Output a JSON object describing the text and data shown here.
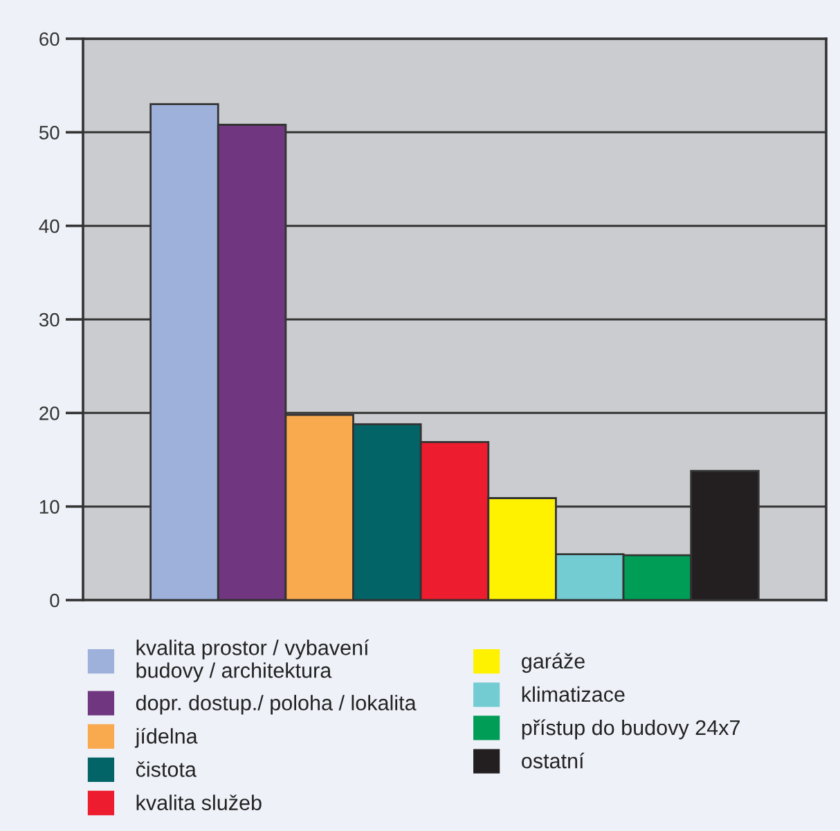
{
  "chart_data": {
    "type": "bar",
    "categories": [
      null,
      null,
      null,
      null,
      null,
      null,
      null,
      null,
      null,
      null,
      null
    ],
    "series": [
      {
        "name": "kvalita prostor / vybavení budovy / architektura",
        "color": "#9db1db",
        "values": [
          null,
          53,
          null,
          null,
          null,
          null,
          null,
          null,
          null,
          null,
          null
        ]
      },
      {
        "name": "dopr. dostup./ poloha / lokalita",
        "color": "#703680",
        "values": [
          null,
          null,
          50.8,
          null,
          null,
          null,
          null,
          null,
          null,
          null,
          null
        ]
      },
      {
        "name": "jídelna",
        "color": "#f9a94e",
        "values": [
          null,
          null,
          null,
          19.8,
          null,
          null,
          null,
          null,
          null,
          null,
          null
        ]
      },
      {
        "name": "čistota",
        "color": "#036468",
        "values": [
          null,
          null,
          null,
          null,
          18.8,
          null,
          null,
          null,
          null,
          null,
          null
        ]
      },
      {
        "name": "kvalita služeb",
        "color": "#ed1c2e",
        "values": [
          null,
          null,
          null,
          null,
          null,
          16.9,
          null,
          null,
          null,
          null,
          null
        ]
      },
      {
        "name": "garáže",
        "color": "#fff200",
        "values": [
          null,
          null,
          null,
          null,
          null,
          null,
          10.9,
          null,
          null,
          null,
          null
        ]
      },
      {
        "name": "klimatizace",
        "color": "#74ccd3",
        "values": [
          null,
          null,
          null,
          null,
          null,
          null,
          null,
          4.9,
          null,
          null,
          null
        ]
      },
      {
        "name": "přístup do budovy 24x7",
        "color": "#009d57",
        "values": [
          null,
          null,
          null,
          null,
          null,
          null,
          null,
          null,
          4.8,
          null,
          null
        ]
      },
      {
        "name": "ostatní",
        "color": "#231f20",
        "values": [
          null,
          null,
          null,
          null,
          null,
          null,
          null,
          null,
          null,
          13.8,
          null
        ]
      }
    ],
    "ylim": [
      0,
      60
    ],
    "yticks": [
      0,
      10,
      20,
      30,
      40,
      50,
      60
    ],
    "grid": "y",
    "legend": "bottom",
    "tick_labels": "y"
  }
}
